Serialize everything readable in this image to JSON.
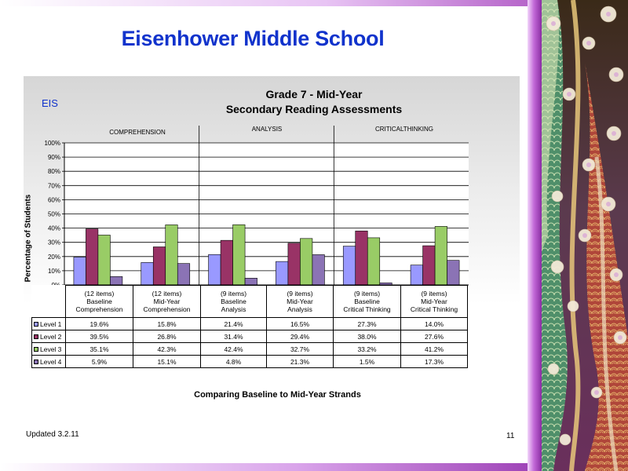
{
  "slide": {
    "title": "Eisenhower Middle School",
    "chart_corner_label": "EIS",
    "footer_left": "Updated  3.2.11",
    "page_number": "11"
  },
  "colors": {
    "title": "#1133cc",
    "level_1": "#9999ff",
    "level_2": "#993366",
    "level_3": "#99cc66",
    "level_4": "#8b73b5",
    "frame": "#b35fc7"
  },
  "chart_data": {
    "type": "bar",
    "title": "Grade 7 - Mid-Year",
    "subtitle": "Secondary Reading Assessments",
    "strand_labels": [
      "COMPREHENSION",
      "ANALYSIS",
      "CRITICALTHINKING"
    ],
    "categories": [
      [
        "(12 items)",
        "Baseline",
        "Comprehension"
      ],
      [
        "(12 items)",
        "Mid-Year",
        "Comprehension"
      ],
      [
        "(9 items)",
        "Baseline",
        "Analysis"
      ],
      [
        "(9 items)",
        "Mid-Year",
        "Analysis"
      ],
      [
        "(9 items)",
        "Baseline",
        "Critical Thinking"
      ],
      [
        "(9 items)",
        "Mid-Year",
        "Critical Thinking"
      ]
    ],
    "series": [
      {
        "name": "Level 1",
        "values": [
          19.6,
          15.8,
          21.4,
          16.5,
          27.3,
          14.0
        ],
        "labels": [
          "19.6%",
          "15.8%",
          "21.4%",
          "16.5%",
          "27.3%",
          "14.0%"
        ]
      },
      {
        "name": "Level 2",
        "values": [
          39.5,
          26.8,
          31.4,
          29.4,
          38.0,
          27.6
        ],
        "labels": [
          "39.5%",
          "26.8%",
          "31.4%",
          "29.4%",
          "38.0%",
          "27.6%"
        ]
      },
      {
        "name": "Level 3",
        "values": [
          35.1,
          42.3,
          42.4,
          32.7,
          33.2,
          41.2
        ],
        "labels": [
          "35.1%",
          "42.3%",
          "42.4%",
          "32.7%",
          "33.2%",
          "41.2%"
        ]
      },
      {
        "name": "Level 4",
        "values": [
          5.9,
          15.1,
          4.8,
          21.3,
          1.5,
          17.3
        ],
        "labels": [
          "5.9%",
          "15.1%",
          "4.8%",
          "21.3%",
          "1.5%",
          "17.3%"
        ]
      }
    ],
    "ylabel": "Percentage of Students",
    "xlabel": "Comparing Baseline to Mid-Year Strands",
    "ylim": [
      0,
      100
    ],
    "yticks": [
      "0%",
      "10%",
      "20%",
      "30%",
      "40%",
      "50%",
      "60%",
      "70%",
      "80%",
      "90%",
      "100%"
    ],
    "grid": true,
    "legend": "data-table"
  }
}
